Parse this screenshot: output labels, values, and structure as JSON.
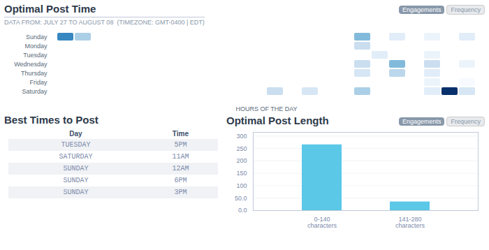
{
  "chart_data": [
    {
      "type": "heatmap",
      "title": "Optimal Post Time",
      "subtitle": "DATA FROM: JULY 27 TO AUGUST 08  (TIMEZONE: GMT-0400 | EDT)",
      "categories": [
        "Sunday",
        "Monday",
        "Tuesday",
        "Wednesday",
        "Thursday",
        "Friday",
        "Saturday"
      ],
      "xlabel": "HOURS OF THE DAY",
      "values": [
        [
          0.7,
          0.4,
          0,
          0,
          0,
          0,
          0,
          0,
          0,
          0,
          0,
          0,
          0,
          0,
          0,
          0,
          0,
          0.5,
          0,
          0.2,
          0,
          0.15,
          0,
          0.2
        ],
        [
          0,
          0,
          0,
          0,
          0,
          0,
          0,
          0,
          0,
          0,
          0,
          0,
          0,
          0,
          0,
          0,
          0,
          0.3,
          0,
          0,
          0,
          0,
          0,
          0
        ],
        [
          0,
          0,
          0,
          0,
          0,
          0,
          0,
          0,
          0,
          0,
          0,
          0,
          0,
          0,
          0,
          0,
          0,
          0,
          0.2,
          0,
          0,
          0.15,
          0,
          0
        ],
        [
          0,
          0,
          0,
          0,
          0,
          0,
          0,
          0,
          0,
          0,
          0,
          0,
          0,
          0,
          0,
          0,
          0,
          0.3,
          0,
          0.5,
          0,
          0.3,
          0,
          0.15
        ],
        [
          0,
          0,
          0,
          0,
          0,
          0,
          0,
          0,
          0,
          0,
          0,
          0,
          0,
          0,
          0,
          0,
          0,
          0.25,
          0,
          0.35,
          0,
          0.2,
          0,
          0
        ],
        [
          0,
          0,
          0,
          0,
          0,
          0,
          0,
          0,
          0,
          0,
          0,
          0,
          0,
          0,
          0,
          0,
          0,
          0,
          0,
          0,
          0,
          0.15,
          0,
          0.1
        ],
        [
          0,
          0,
          0,
          0,
          0,
          0,
          0,
          0,
          0,
          0,
          0,
          0,
          0.3,
          0,
          0.25,
          0,
          0,
          0.4,
          0,
          0,
          0,
          0.2,
          1.0,
          0.25
        ]
      ],
      "tick_labels": "y",
      "annotations": [
        "Engagements",
        "Frequency"
      ]
    },
    {
      "type": "table",
      "title": "Best Times to Post",
      "columns": [
        "Day",
        "Time"
      ],
      "rows": [
        [
          "TUESDAY",
          "5PM"
        ],
        [
          "SATURDAY",
          "11AM"
        ],
        [
          "SUNDAY",
          "12AM"
        ],
        [
          "SUNDAY",
          "6PM"
        ],
        [
          "SUNDAY",
          "3PM"
        ]
      ]
    },
    {
      "type": "bar",
      "title": "Optimal Post Length",
      "categories": [
        "0-140\ncharacters",
        "141-280\ncharacters"
      ],
      "values": [
        265,
        35
      ],
      "color": "#5bc8e8",
      "ylim": [
        0,
        315
      ],
      "yticks": [
        {
          "value": 0,
          "label": "0.0"
        },
        {
          "value": 50,
          "label": "50.0"
        },
        100,
        150,
        200,
        250,
        300
      ],
      "grid": true,
      "annotations": [
        "Engagements",
        "Frequency"
      ]
    }
  ]
}
